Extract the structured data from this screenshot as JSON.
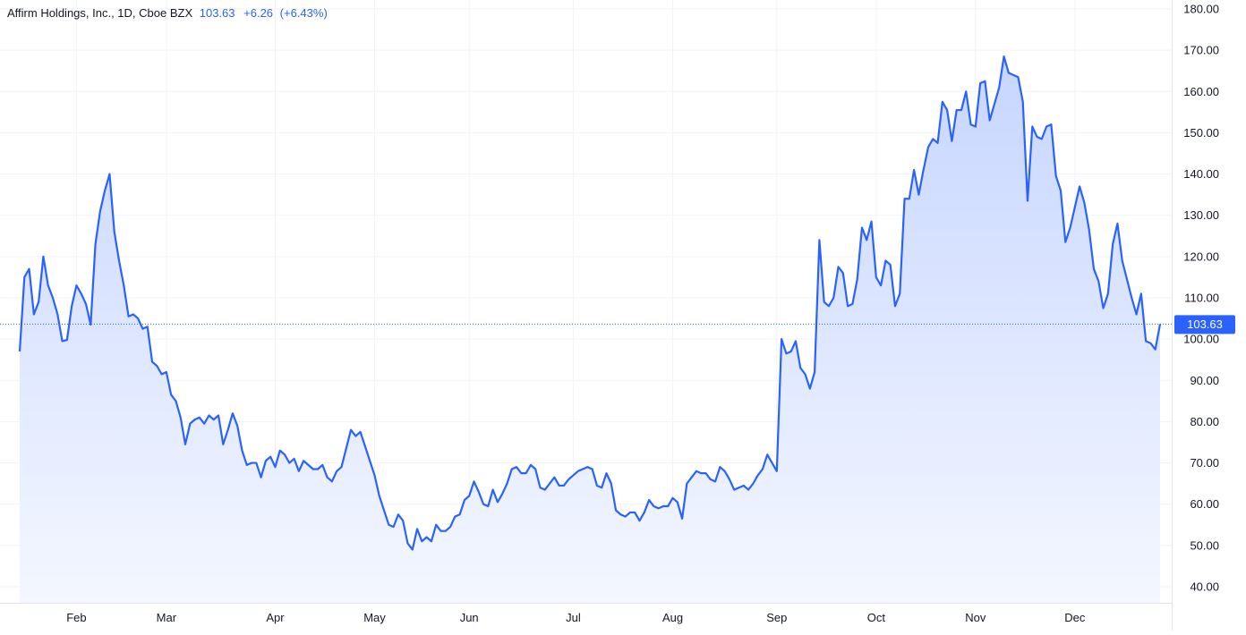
{
  "header": {
    "symbol_line": "Affirm Holdings, Inc., 1D, Cboe BZX",
    "last_price": "103.63",
    "change": "+6.26",
    "change_pct": "(+6.43%)"
  },
  "colors": {
    "line": "#2962ff",
    "area_top": "#c7d6ff",
    "area_bottom": "#f4f7ff",
    "grid": "#f0f3fa",
    "axis_text": "#131722",
    "price_label_bg": "#2962ff"
  },
  "chart_data": {
    "type": "area",
    "grid": true,
    "price_label": "103.63",
    "last_value": 103.63,
    "ylim": [
      40,
      180
    ],
    "y_ticks": [
      "180.00",
      "170.00",
      "160.00",
      "150.00",
      "140.00",
      "130.00",
      "120.00",
      "110.00",
      "100.00",
      "90.00",
      "80.00",
      "70.00",
      "60.00",
      "50.00",
      "40.00"
    ],
    "x_ticks": [
      {
        "label": "Feb",
        "date": "2021-02-01"
      },
      {
        "label": "Mar",
        "date": "2021-03-01"
      },
      {
        "label": "Apr",
        "date": "2021-04-01"
      },
      {
        "label": "May",
        "date": "2021-05-03"
      },
      {
        "label": "Jun",
        "date": "2021-06-01"
      },
      {
        "label": "Jul",
        "date": "2021-07-01"
      },
      {
        "label": "Aug",
        "date": "2021-08-02"
      },
      {
        "label": "Sep",
        "date": "2021-09-01"
      },
      {
        "label": "Oct",
        "date": "2021-10-01"
      },
      {
        "label": "Nov",
        "date": "2021-11-01"
      },
      {
        "label": "Dec",
        "date": "2021-12-01"
      }
    ],
    "series": [
      {
        "points": [
          [
            "2021-01-13",
            97.0
          ],
          [
            "2021-01-14",
            115.0
          ],
          [
            "2021-01-15",
            117.0
          ],
          [
            "2021-01-19",
            106.0
          ],
          [
            "2021-01-20",
            109.0
          ],
          [
            "2021-01-21",
            120.0
          ],
          [
            "2021-01-22",
            113.0
          ],
          [
            "2021-01-25",
            110.0
          ],
          [
            "2021-01-26",
            106.0
          ],
          [
            "2021-01-27",
            99.5
          ],
          [
            "2021-01-28",
            99.8
          ],
          [
            "2021-01-29",
            108.0
          ],
          [
            "2021-02-01",
            113.0
          ],
          [
            "2021-02-02",
            111.0
          ],
          [
            "2021-02-03",
            108.5
          ],
          [
            "2021-02-04",
            103.5
          ],
          [
            "2021-02-05",
            123.0
          ],
          [
            "2021-02-08",
            131.0
          ],
          [
            "2021-02-09",
            136.0
          ],
          [
            "2021-02-10",
            140.0
          ],
          [
            "2021-02-11",
            126.0
          ],
          [
            "2021-02-12",
            119.0
          ],
          [
            "2021-02-16",
            113.0
          ],
          [
            "2021-02-17",
            105.5
          ],
          [
            "2021-02-18",
            106.0
          ],
          [
            "2021-02-19",
            105.0
          ],
          [
            "2021-02-22",
            102.5
          ],
          [
            "2021-02-23",
            103.0
          ],
          [
            "2021-02-24",
            94.5
          ],
          [
            "2021-02-25",
            93.5
          ],
          [
            "2021-02-26",
            91.5
          ],
          [
            "2021-03-01",
            92.0
          ],
          [
            "2021-03-02",
            86.5
          ],
          [
            "2021-03-03",
            85.0
          ],
          [
            "2021-03-04",
            81.0
          ],
          [
            "2021-03-05",
            74.5
          ],
          [
            "2021-03-08",
            79.5
          ],
          [
            "2021-03-09",
            80.5
          ],
          [
            "2021-03-10",
            81.0
          ],
          [
            "2021-03-11",
            79.5
          ],
          [
            "2021-03-12",
            81.5
          ],
          [
            "2021-03-15",
            80.5
          ],
          [
            "2021-03-16",
            81.5
          ],
          [
            "2021-03-17",
            74.5
          ],
          [
            "2021-03-18",
            78.0
          ],
          [
            "2021-03-19",
            82.0
          ],
          [
            "2021-03-22",
            79.0
          ],
          [
            "2021-03-23",
            73.0
          ],
          [
            "2021-03-24",
            69.5
          ],
          [
            "2021-03-25",
            70.0
          ],
          [
            "2021-03-26",
            70.0
          ],
          [
            "2021-03-29",
            66.5
          ],
          [
            "2021-03-30",
            70.5
          ],
          [
            "2021-03-31",
            71.5
          ],
          [
            "2021-04-01",
            69.0
          ],
          [
            "2021-04-05",
            73.0
          ],
          [
            "2021-04-06",
            72.0
          ],
          [
            "2021-04-07",
            70.0
          ],
          [
            "2021-04-08",
            71.0
          ],
          [
            "2021-04-09",
            68.0
          ],
          [
            "2021-04-12",
            70.5
          ],
          [
            "2021-04-13",
            69.5
          ],
          [
            "2021-04-14",
            68.5
          ],
          [
            "2021-04-15",
            68.5
          ],
          [
            "2021-04-16",
            69.5
          ],
          [
            "2021-04-19",
            66.5
          ],
          [
            "2021-04-20",
            65.5
          ],
          [
            "2021-04-21",
            68.0
          ],
          [
            "2021-04-22",
            69.0
          ],
          [
            "2021-04-23",
            73.5
          ],
          [
            "2021-04-26",
            78.0
          ],
          [
            "2021-04-27",
            76.5
          ],
          [
            "2021-04-28",
            77.5
          ],
          [
            "2021-04-29",
            74.0
          ],
          [
            "2021-04-30",
            70.5
          ],
          [
            "2021-05-03",
            67.0
          ],
          [
            "2021-05-04",
            62.0
          ],
          [
            "2021-05-05",
            58.5
          ],
          [
            "2021-05-06",
            55.0
          ],
          [
            "2021-05-07",
            54.5
          ],
          [
            "2021-05-10",
            57.5
          ],
          [
            "2021-05-11",
            56.0
          ],
          [
            "2021-05-12",
            50.5
          ],
          [
            "2021-05-13",
            49.0
          ],
          [
            "2021-05-14",
            54.0
          ],
          [
            "2021-05-17",
            51.0
          ],
          [
            "2021-05-18",
            52.0
          ],
          [
            "2021-05-19",
            51.0
          ],
          [
            "2021-05-20",
            55.0
          ],
          [
            "2021-05-21",
            53.5
          ],
          [
            "2021-05-24",
            53.5
          ],
          [
            "2021-05-25",
            54.5
          ],
          [
            "2021-05-26",
            57.0
          ],
          [
            "2021-05-27",
            57.5
          ],
          [
            "2021-05-28",
            61.0
          ],
          [
            "2021-06-01",
            62.0
          ],
          [
            "2021-06-02",
            65.5
          ],
          [
            "2021-06-03",
            63.0
          ],
          [
            "2021-06-04",
            60.0
          ],
          [
            "2021-06-07",
            59.5
          ],
          [
            "2021-06-08",
            63.5
          ],
          [
            "2021-06-09",
            60.5
          ],
          [
            "2021-06-10",
            62.5
          ],
          [
            "2021-06-11",
            65.0
          ],
          [
            "2021-06-14",
            68.5
          ],
          [
            "2021-06-15",
            69.0
          ],
          [
            "2021-06-16",
            67.5
          ],
          [
            "2021-06-17",
            67.5
          ],
          [
            "2021-06-18",
            69.5
          ],
          [
            "2021-06-21",
            68.5
          ],
          [
            "2021-06-22",
            64.0
          ],
          [
            "2021-06-23",
            63.5
          ],
          [
            "2021-06-24",
            65.0
          ],
          [
            "2021-06-25",
            66.5
          ],
          [
            "2021-06-28",
            64.5
          ],
          [
            "2021-06-29",
            64.5
          ],
          [
            "2021-06-30",
            66.0
          ],
          [
            "2021-07-01",
            67.0
          ],
          [
            "2021-07-02",
            68.0
          ],
          [
            "2021-07-06",
            68.5
          ],
          [
            "2021-07-07",
            69.0
          ],
          [
            "2021-07-08",
            68.5
          ],
          [
            "2021-07-09",
            64.5
          ],
          [
            "2021-07-12",
            64.0
          ],
          [
            "2021-07-13",
            67.5
          ],
          [
            "2021-07-14",
            65.0
          ],
          [
            "2021-07-15",
            58.5
          ],
          [
            "2021-07-16",
            57.5
          ],
          [
            "2021-07-19",
            57.0
          ],
          [
            "2021-07-20",
            58.0
          ],
          [
            "2021-07-21",
            58.0
          ],
          [
            "2021-07-22",
            56.0
          ],
          [
            "2021-07-23",
            58.0
          ],
          [
            "2021-07-26",
            61.0
          ],
          [
            "2021-07-27",
            59.5
          ],
          [
            "2021-07-28",
            59.0
          ],
          [
            "2021-07-29",
            59.5
          ],
          [
            "2021-07-30",
            59.5
          ],
          [
            "2021-08-02",
            61.5
          ],
          [
            "2021-08-03",
            60.5
          ],
          [
            "2021-08-04",
            56.5
          ],
          [
            "2021-08-05",
            65.0
          ],
          [
            "2021-08-06",
            66.5
          ],
          [
            "2021-08-09",
            68.0
          ],
          [
            "2021-08-10",
            67.5
          ],
          [
            "2021-08-11",
            67.5
          ],
          [
            "2021-08-12",
            66.0
          ],
          [
            "2021-08-13",
            65.5
          ],
          [
            "2021-08-16",
            69.0
          ],
          [
            "2021-08-17",
            68.0
          ],
          [
            "2021-08-18",
            66.0
          ],
          [
            "2021-08-19",
            63.5
          ],
          [
            "2021-08-20",
            64.0
          ],
          [
            "2021-08-23",
            64.5
          ],
          [
            "2021-08-24",
            63.5
          ],
          [
            "2021-08-25",
            65.0
          ],
          [
            "2021-08-26",
            67.0
          ],
          [
            "2021-08-27",
            68.5
          ],
          [
            "2021-08-30",
            72.0
          ],
          [
            "2021-08-31",
            70.0
          ],
          [
            "2021-09-01",
            68.0
          ],
          [
            "2021-09-02",
            100.0
          ],
          [
            "2021-09-03",
            96.5
          ],
          [
            "2021-09-07",
            97.0
          ],
          [
            "2021-09-08",
            99.5
          ],
          [
            "2021-09-09",
            93.0
          ],
          [
            "2021-09-10",
            91.5
          ],
          [
            "2021-09-13",
            88.0
          ],
          [
            "2021-09-14",
            92.0
          ],
          [
            "2021-09-15",
            124.0
          ],
          [
            "2021-09-16",
            109.0
          ],
          [
            "2021-09-17",
            108.0
          ],
          [
            "2021-09-20",
            110.0
          ],
          [
            "2021-09-21",
            117.5
          ],
          [
            "2021-09-22",
            116.0
          ],
          [
            "2021-09-23",
            108.0
          ],
          [
            "2021-09-24",
            108.5
          ],
          [
            "2021-09-27",
            114.5
          ],
          [
            "2021-09-28",
            127.0
          ],
          [
            "2021-09-29",
            124.0
          ],
          [
            "2021-09-30",
            128.5
          ],
          [
            "2021-10-01",
            115.0
          ],
          [
            "2021-10-04",
            113.0
          ],
          [
            "2021-10-05",
            119.0
          ],
          [
            "2021-10-06",
            118.0
          ],
          [
            "2021-10-07",
            108.0
          ],
          [
            "2021-10-08",
            111.0
          ],
          [
            "2021-10-11",
            134.0
          ],
          [
            "2021-10-12",
            134.0
          ],
          [
            "2021-10-13",
            141.0
          ],
          [
            "2021-10-14",
            135.0
          ],
          [
            "2021-10-15",
            141.0
          ],
          [
            "2021-10-18",
            146.5
          ],
          [
            "2021-10-19",
            148.5
          ],
          [
            "2021-10-20",
            147.5
          ],
          [
            "2021-10-21",
            157.5
          ],
          [
            "2021-10-22",
            155.5
          ],
          [
            "2021-10-25",
            148.0
          ],
          [
            "2021-10-26",
            155.5
          ],
          [
            "2021-10-27",
            155.5
          ],
          [
            "2021-10-28",
            160.0
          ],
          [
            "2021-10-29",
            152.0
          ],
          [
            "2021-11-01",
            151.5
          ],
          [
            "2021-11-02",
            162.0
          ],
          [
            "2021-11-03",
            162.5
          ],
          [
            "2021-11-04",
            153.0
          ],
          [
            "2021-11-05",
            157.0
          ],
          [
            "2021-11-08",
            161.0
          ],
          [
            "2021-11-09",
            168.5
          ],
          [
            "2021-11-10",
            164.5
          ],
          [
            "2021-11-11",
            164.0
          ],
          [
            "2021-11-12",
            163.5
          ],
          [
            "2021-11-15",
            157.5
          ],
          [
            "2021-11-16",
            133.5
          ],
          [
            "2021-11-17",
            151.5
          ],
          [
            "2021-11-18",
            149.0
          ],
          [
            "2021-11-19",
            148.5
          ],
          [
            "2021-11-22",
            151.5
          ],
          [
            "2021-11-23",
            152.0
          ],
          [
            "2021-11-24",
            139.5
          ],
          [
            "2021-11-26",
            136.0
          ],
          [
            "2021-11-29",
            123.5
          ],
          [
            "2021-11-30",
            127.0
          ],
          [
            "2021-12-01",
            132.0
          ],
          [
            "2021-12-02",
            137.0
          ],
          [
            "2021-12-03",
            133.0
          ],
          [
            "2021-12-06",
            126.5
          ],
          [
            "2021-12-07",
            117.0
          ],
          [
            "2021-12-08",
            114.0
          ],
          [
            "2021-12-09",
            107.5
          ],
          [
            "2021-12-10",
            111.0
          ],
          [
            "2021-12-13",
            123.0
          ],
          [
            "2021-12-14",
            128.0
          ],
          [
            "2021-12-15",
            119.0
          ],
          [
            "2021-12-16",
            114.5
          ],
          [
            "2021-12-17",
            110.0
          ],
          [
            "2021-12-20",
            106.0
          ],
          [
            "2021-12-21",
            111.0
          ],
          [
            "2021-12-22",
            99.5
          ],
          [
            "2021-12-23",
            99.0
          ],
          [
            "2021-12-27",
            97.5
          ],
          [
            "2021-12-28",
            103.63
          ]
        ]
      }
    ]
  }
}
